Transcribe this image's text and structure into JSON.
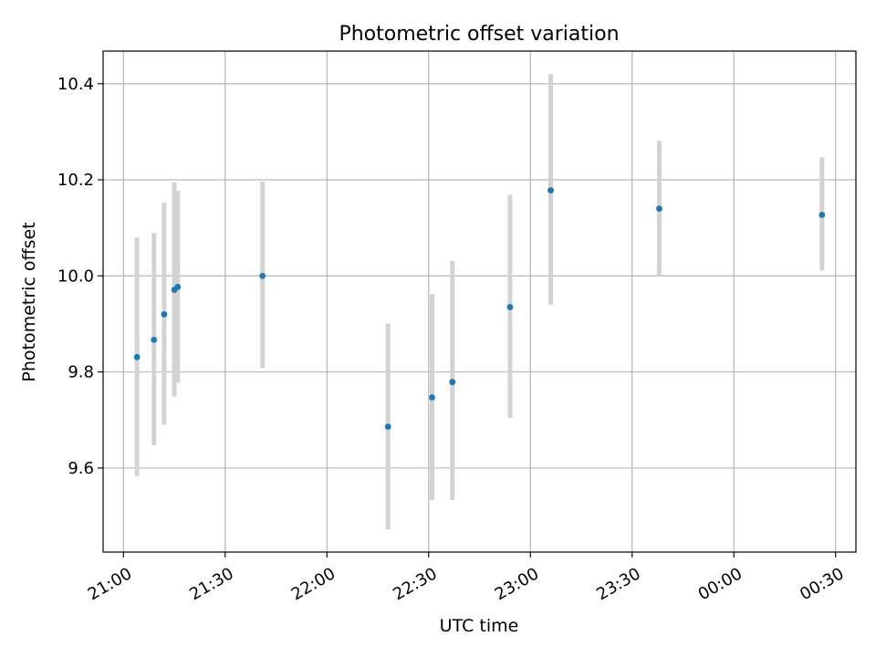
{
  "chart_data": {
    "type": "scatter",
    "title": "Photometric offset variation",
    "xlabel": "UTC time",
    "ylabel": "Photometric offset",
    "x_axis": {
      "ticks": [
        "21:00",
        "21:30",
        "22:00",
        "22:30",
        "23:00",
        "23:30",
        "00:00",
        "00:30"
      ],
      "tick_minutes": [
        0,
        30,
        60,
        90,
        120,
        150,
        180,
        210
      ],
      "range_minutes": [
        -6,
        216
      ]
    },
    "y_axis": {
      "ticks": [
        "9.6",
        "9.8",
        "10.0",
        "10.2",
        "10.4"
      ],
      "tick_values": [
        9.6,
        9.8,
        10.0,
        10.2,
        10.4
      ],
      "ylim": [
        9.425,
        10.468
      ]
    },
    "grid": true,
    "marker_color": "#1f77b4",
    "errorbar_color": "#d3d3d3",
    "points": [
      {
        "time": "21:04",
        "y": 9.831,
        "err_low": 9.583,
        "err_high": 10.08
      },
      {
        "time": "21:09",
        "y": 9.867,
        "err_low": 9.647,
        "err_high": 10.089
      },
      {
        "time": "21:12",
        "y": 9.92,
        "err_low": 9.69,
        "err_high": 10.152
      },
      {
        "time": "21:15",
        "y": 9.971,
        "err_low": 9.749,
        "err_high": 10.195
      },
      {
        "time": "21:16",
        "y": 9.977,
        "err_low": 9.778,
        "err_high": 10.177
      },
      {
        "time": "21:41",
        "y": 10.0,
        "err_low": 9.808,
        "err_high": 10.196
      },
      {
        "time": "22:18",
        "y": 9.686,
        "err_low": 9.472,
        "err_high": 9.901
      },
      {
        "time": "22:31",
        "y": 9.747,
        "err_low": 9.533,
        "err_high": 9.962
      },
      {
        "time": "22:37",
        "y": 9.779,
        "err_low": 9.533,
        "err_high": 10.031
      },
      {
        "time": "22:54",
        "y": 9.935,
        "err_low": 9.704,
        "err_high": 10.169
      },
      {
        "time": "23:06",
        "y": 10.178,
        "err_low": 9.94,
        "err_high": 10.42
      },
      {
        "time": "23:38",
        "y": 10.14,
        "err_low": 10.0,
        "err_high": 10.281
      },
      {
        "time": "00:26",
        "y": 10.127,
        "err_low": 10.011,
        "err_high": 10.247
      }
    ]
  }
}
